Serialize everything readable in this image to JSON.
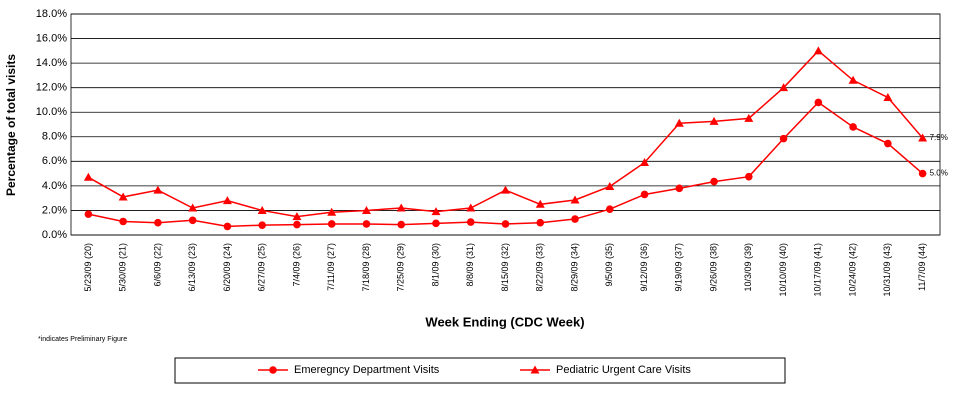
{
  "chart_data": {
    "type": "line",
    "y_label": "Percentage of total visits",
    "x_label": "Week Ending (CDC Week)",
    "note": "*indicates Preliminary Figure",
    "categories": [
      "5/23/09 (20)",
      "5/30/09 (21)",
      "6/6/09 (22)",
      "6/13/09 (23)",
      "6/20/09 (24)",
      "6/27/09 (25)",
      "7/4/09 (26)",
      "7/11/09 (27)",
      "7/18/09 (28)",
      "7/25/09 (29)",
      "8/1/09 (30)",
      "8/8/09 (31)",
      "8/15/09 (32)",
      "8/22/09 (33)",
      "8/29/09 (34)",
      "9/5/09 (35)",
      "9/12/09 (36)",
      "9/19/09 (37)",
      "9/26/09 (38)",
      "10/3/09 (39)",
      "10/10/09 (40)",
      "10/17/09 (41)",
      "10/24/09 (42)",
      "10/31/09 (43)",
      "11/7/09 (44)"
    ],
    "series": [
      {
        "name": "Emeregncy Department Visits",
        "color": "#ff0000",
        "marker": "circle",
        "values": [
          1.7,
          1.1,
          1.0,
          1.2,
          0.7,
          0.8,
          0.85,
          0.9,
          0.9,
          0.85,
          0.95,
          1.05,
          0.9,
          1.0,
          1.3,
          2.1,
          3.3,
          3.8,
          4.35,
          4.75,
          7.85,
          10.8,
          8.8,
          7.45,
          5.0
        ],
        "value_labels": [
          null,
          null,
          null,
          null,
          null,
          null,
          null,
          null,
          null,
          null,
          null,
          null,
          null,
          null,
          null,
          null,
          null,
          null,
          null,
          null,
          null,
          null,
          null,
          null,
          "5.0%"
        ]
      },
      {
        "name": "Pediatric Urgent Care Visits",
        "color": "#ff0000",
        "marker": "triangle",
        "values": [
          4.7,
          3.1,
          3.65,
          2.2,
          2.8,
          2.0,
          1.5,
          1.85,
          2.0,
          2.2,
          1.9,
          2.2,
          3.65,
          2.5,
          2.85,
          3.95,
          5.9,
          9.1,
          9.25,
          9.5,
          12.0,
          15.0,
          12.6,
          11.2,
          7.9
        ],
        "value_labels": [
          null,
          null,
          null,
          null,
          null,
          null,
          null,
          null,
          null,
          null,
          null,
          null,
          null,
          null,
          null,
          null,
          null,
          null,
          null,
          null,
          null,
          null,
          null,
          null,
          "7.9%"
        ]
      }
    ],
    "ylim": [
      0,
      18
    ],
    "yticks": [
      {
        "value": 0,
        "label": "0.0%"
      },
      {
        "value": 2,
        "label": "2.0%"
      },
      {
        "value": 4,
        "label": "4.0%"
      },
      {
        "value": 6,
        "label": "6.0%"
      },
      {
        "value": 8,
        "label": "8.0%"
      },
      {
        "value": 10,
        "label": "10.0%"
      },
      {
        "value": 12,
        "label": "12.0%"
      },
      {
        "value": 14,
        "label": "14.0%"
      },
      {
        "value": 16,
        "label": "16.0%"
      },
      {
        "value": 18,
        "label": "18.0%"
      }
    ],
    "grid": true
  }
}
